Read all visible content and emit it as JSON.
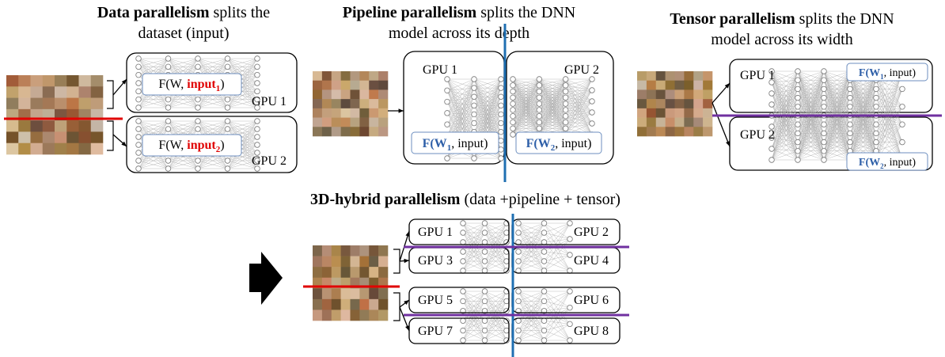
{
  "data_parallelism": {
    "title": {
      "bold": "Data parallelism",
      "rest": " splits the",
      "line2": "dataset (input)"
    },
    "gpus": [
      "GPU 1",
      "GPU 2"
    ],
    "formulas": [
      {
        "prefix": "F(W, ",
        "arg": "input",
        "sub": "1",
        "suffix": ")"
      },
      {
        "prefix": "F(W, ",
        "arg": "input",
        "sub": "2",
        "suffix": ")"
      }
    ]
  },
  "pipeline_parallelism": {
    "title": {
      "bold": "Pipeline parallelism",
      "rest": " splits the DNN",
      "line2": "model across its depth"
    },
    "gpus": [
      "GPU 1",
      "GPU 2"
    ],
    "formulas": [
      {
        "bold": "F(W",
        "sub": "1",
        "rest": ", input)"
      },
      {
        "bold": "F(W",
        "sub": "2",
        "rest": ", input)"
      }
    ]
  },
  "tensor_parallelism": {
    "title": {
      "bold": "Tensor parallelism",
      "rest": " splits the DNN",
      "line2": "model across its width"
    },
    "gpus": [
      "GPU 1",
      "GPU 2"
    ],
    "formulas": [
      {
        "bold": "F(W",
        "sub": "1",
        "rest": ", input)"
      },
      {
        "bold": "F(W",
        "sub": "2",
        "rest": ", input)"
      }
    ]
  },
  "hybrid_parallelism": {
    "title": {
      "bold": "3D-hybrid parallelism",
      "rest": " (data +pipeline + tensor)"
    },
    "gpus": [
      "GPU 1",
      "GPU 2",
      "GPU 3",
      "GPU 4",
      "GPU 5",
      "GPU 6",
      "GPU 7",
      "GPU 8"
    ]
  }
}
